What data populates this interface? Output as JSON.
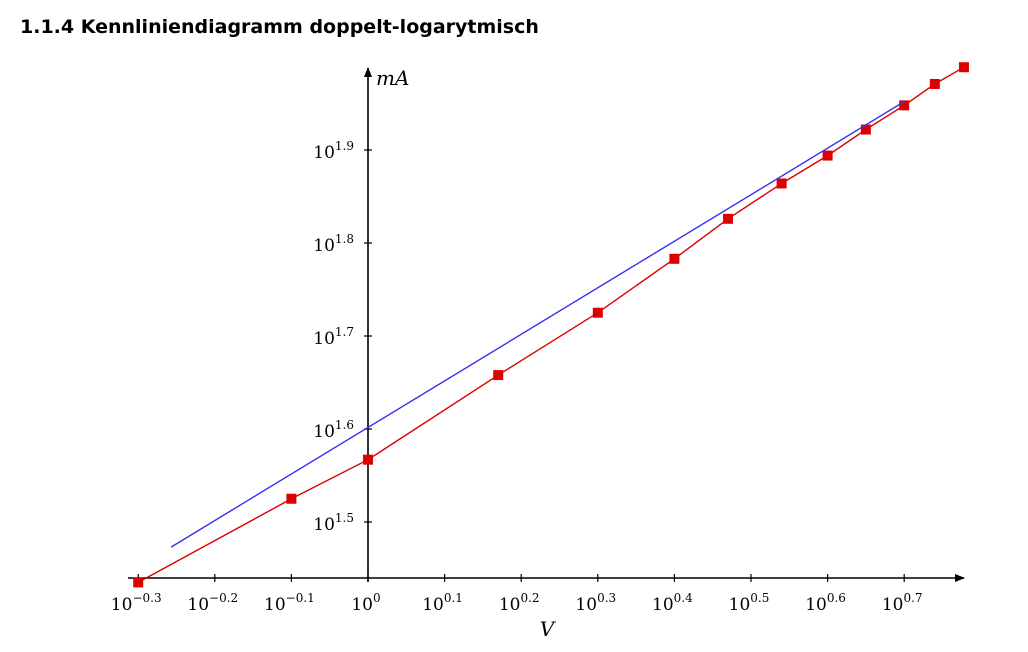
{
  "page": {
    "title": "1.1.4 Kennliniendiagramm doppelt-logarytmisch"
  },
  "chart_data": {
    "type": "line",
    "title": "",
    "xlabel": "V",
    "ylabel": "mA",
    "xscale": "log10",
    "yscale": "log10",
    "x_exponent_range": [
      -0.3,
      0.78
    ],
    "y_exponent_range": [
      1.435,
      1.99
    ],
    "grid": false,
    "x_tick_exponents": [
      "-0.3",
      "-0.2",
      "-0.1",
      "0",
      "0.1",
      "0.2",
      "0.3",
      "0.4",
      "0.5",
      "0.6",
      "0.7"
    ],
    "y_tick_exponents": [
      "1.5",
      "1.6",
      "1.7",
      "1.8",
      "1.9"
    ],
    "series": [
      {
        "color": "#dd0000",
        "marker": "square",
        "x_log10": [
          -0.3,
          -0.1,
          0.0,
          0.17,
          0.3,
          0.4,
          0.47,
          0.54,
          0.6,
          0.65,
          0.7,
          0.74,
          0.778
        ],
        "y_log10": [
          1.435,
          1.525,
          1.567,
          1.658,
          1.725,
          1.783,
          1.826,
          1.864,
          1.894,
          1.922,
          1.948,
          1.971,
          1.989
        ]
      },
      {
        "color": "#3333ee",
        "marker": "none",
        "x_log10": [
          -0.257,
          0.7
        ],
        "y_log10": [
          1.473,
          1.952
        ]
      }
    ]
  }
}
